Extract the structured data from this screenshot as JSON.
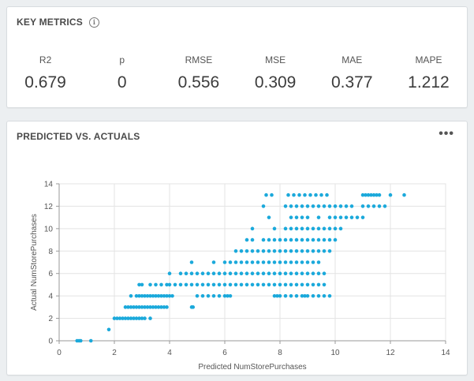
{
  "metrics_card": {
    "title": "KEY METRICS",
    "info_glyph": "i",
    "items": [
      {
        "label": "R2",
        "value": "0.679"
      },
      {
        "label": "p",
        "value": "0"
      },
      {
        "label": "RMSE",
        "value": "0.556"
      },
      {
        "label": "MSE",
        "value": "0.309"
      },
      {
        "label": "MAE",
        "value": "0.377"
      },
      {
        "label": "MAPE",
        "value": "1.212"
      }
    ]
  },
  "chart_card": {
    "title": "PREDICTED VS. ACTUALS",
    "more_glyph": "•••"
  },
  "colors": {
    "point": "#1ba9db",
    "grid": "#e3e3e3",
    "axis": "#9a9a9a"
  },
  "chart_data": {
    "type": "scatter",
    "xlabel": "Predicted NumStorePurchases",
    "ylabel": "Actual NumStorePurchases",
    "xlim": [
      0,
      14
    ],
    "ylim": [
      0,
      14
    ],
    "xticks": [
      0,
      2,
      4,
      6,
      8,
      10,
      12,
      14
    ],
    "yticks": [
      0,
      2,
      4,
      6,
      8,
      10,
      12,
      14
    ],
    "grid": true,
    "rows": [
      {
        "y": 0,
        "x": [
          0.65,
          0.72,
          0.78,
          1.15
        ]
      },
      {
        "y": 1,
        "x": [
          1.8
        ]
      },
      {
        "y": 2,
        "x": [
          2.0,
          2.1,
          2.2,
          2.3,
          2.4,
          2.5,
          2.6,
          2.7,
          2.8,
          2.9,
          3.0,
          3.1,
          3.3
        ]
      },
      {
        "y": 3,
        "x": [
          2.4,
          2.5,
          2.6,
          2.7,
          2.8,
          2.9,
          3.0,
          3.1,
          3.2,
          3.3,
          3.4,
          3.5,
          3.6,
          3.7,
          3.8,
          3.9,
          4.8,
          4.85
        ]
      },
      {
        "y": 4,
        "x": [
          2.6,
          2.8,
          2.9,
          3.0,
          3.1,
          3.2,
          3.3,
          3.4,
          3.5,
          3.6,
          3.7,
          3.8,
          3.9,
          4.0,
          4.1,
          5.0,
          5.2,
          5.4,
          5.6,
          5.8,
          6.0,
          6.1,
          6.2,
          7.8,
          7.9,
          8.0,
          8.2,
          8.4,
          8.6,
          8.8,
          8.9,
          9.0,
          9.2,
          9.4,
          9.6,
          9.8
        ]
      },
      {
        "y": 5,
        "x": [
          2.9,
          3.0,
          3.3,
          3.5,
          3.7,
          3.9,
          4.0,
          4.2,
          4.4,
          4.6,
          4.8,
          5.0,
          5.2,
          5.4,
          5.6,
          5.8,
          6.0,
          6.2,
          6.4,
          6.6,
          6.8,
          7.0,
          7.2,
          7.4,
          7.6,
          7.8,
          8.0,
          8.2,
          8.4,
          8.6,
          8.8,
          9.0,
          9.2,
          9.4,
          9.6
        ]
      },
      {
        "y": 6,
        "x": [
          4.0,
          4.4,
          4.6,
          4.8,
          5.0,
          5.2,
          5.4,
          5.6,
          5.8,
          6.0,
          6.2,
          6.4,
          6.6,
          6.8,
          7.0,
          7.2,
          7.4,
          7.6,
          7.8,
          8.0,
          8.2,
          8.4,
          8.6,
          8.8,
          9.0,
          9.2,
          9.4,
          9.6
        ]
      },
      {
        "y": 7,
        "x": [
          4.8,
          5.6,
          6.0,
          6.2,
          6.4,
          6.6,
          6.8,
          7.0,
          7.2,
          7.4,
          7.6,
          7.8,
          8.0,
          8.2,
          8.4,
          8.6,
          8.8,
          9.0,
          9.2,
          9.4
        ]
      },
      {
        "y": 8,
        "x": [
          6.4,
          6.6,
          6.8,
          7.0,
          7.2,
          7.4,
          7.6,
          7.8,
          8.0,
          8.2,
          8.4,
          8.6,
          8.8,
          9.0,
          9.2,
          9.4,
          9.6,
          9.8
        ]
      },
      {
        "y": 9,
        "x": [
          6.8,
          7.0,
          7.4,
          7.6,
          7.8,
          8.0,
          8.2,
          8.4,
          8.6,
          8.8,
          9.0,
          9.2,
          9.4,
          9.6,
          9.8,
          10.0
        ]
      },
      {
        "y": 10,
        "x": [
          7.0,
          7.8,
          8.2,
          8.4,
          8.6,
          8.8,
          9.0,
          9.2,
          9.4,
          9.6,
          9.8,
          10.0,
          10.2
        ]
      },
      {
        "y": 11,
        "x": [
          7.6,
          8.4,
          8.6,
          8.8,
          9.0,
          9.4,
          9.8,
          10.0,
          10.2,
          10.4,
          10.6,
          10.8,
          11.0
        ]
      },
      {
        "y": 12,
        "x": [
          7.4,
          8.2,
          8.4,
          8.6,
          8.8,
          9.0,
          9.2,
          9.4,
          9.6,
          9.8,
          10.0,
          10.2,
          10.4,
          10.6,
          11.0,
          11.2,
          11.4,
          11.6,
          11.8
        ]
      },
      {
        "y": 13,
        "x": [
          7.5,
          7.7,
          8.3,
          8.5,
          8.7,
          8.9,
          9.1,
          9.3,
          9.5,
          9.7,
          11.0,
          11.1,
          11.2,
          11.3,
          11.4,
          11.5,
          11.6,
          12.0,
          12.5
        ]
      }
    ]
  }
}
